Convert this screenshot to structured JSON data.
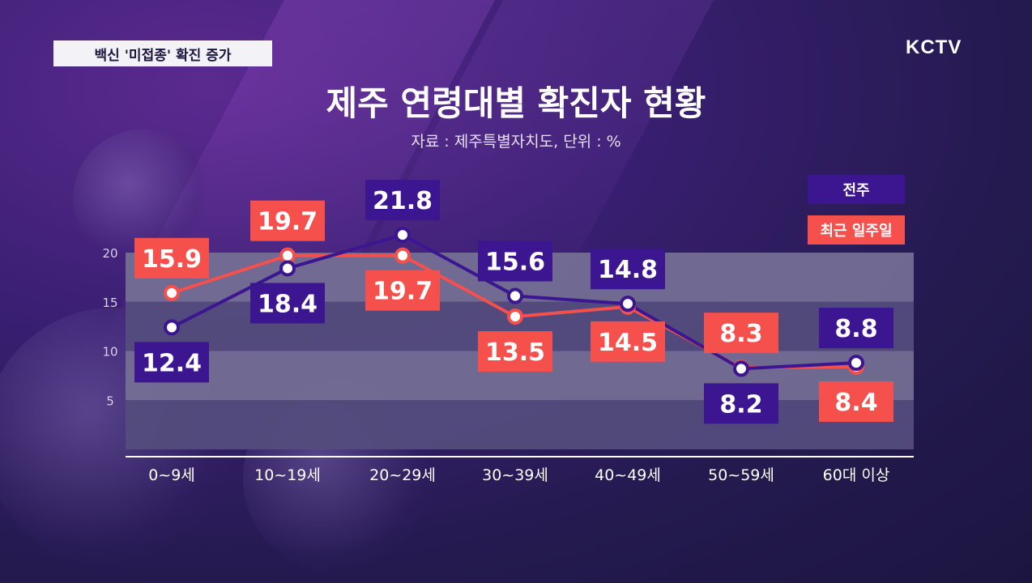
{
  "header": {
    "news_tag": "백신 '미접종' 확진 증가",
    "logo": "KCTV",
    "title": "제주 연령대별 확진자 현황",
    "subtitle": "자료 : 제주특별자치도, 단위 : %"
  },
  "chart_data": {
    "type": "line",
    "title": "제주 연령대별 확진자 현황",
    "subtitle": "자료 : 제주특별자치도, 단위 : %",
    "categories": [
      "0~9세",
      "10~19세",
      "20~29세",
      "30~39세",
      "40~49세",
      "50~59세",
      "60대 이상"
    ],
    "y_ticks": [
      "20",
      "15",
      "10",
      "5"
    ],
    "ylim": [
      0,
      20
    ],
    "grid": "horizontal bands",
    "legend_position": "top-right",
    "series": [
      {
        "name": "전주",
        "color": "#3b1690",
        "values": [
          12.4,
          18.4,
          21.8,
          15.6,
          14.8,
          8.2,
          8.8
        ],
        "labels": [
          "12.4",
          "18.4",
          "21.8",
          "15.6",
          "14.8",
          "8.2",
          "8.8"
        ]
      },
      {
        "name": "최근 일주일",
        "color": "#f5504c",
        "values": [
          15.9,
          19.7,
          19.7,
          13.5,
          14.5,
          8.3,
          8.4
        ],
        "labels": [
          "15.9",
          "19.7",
          "19.7",
          "13.5",
          "14.5",
          "8.3",
          "8.4"
        ]
      }
    ]
  }
}
